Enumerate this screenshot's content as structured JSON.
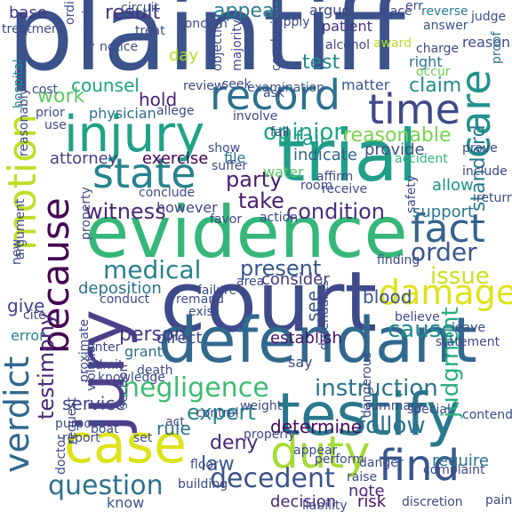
{
  "words": [
    {
      "text": "plaintiff",
      "color": "#3b528b"
    },
    {
      "text": "court",
      "color": "#3e4a89"
    },
    {
      "text": "evidence",
      "color": "#35b779"
    },
    {
      "text": "defendant",
      "color": "#31688e"
    },
    {
      "text": "trial",
      "color": "#1f9e89"
    },
    {
      "text": "jury",
      "color": "#4f3f8b"
    },
    {
      "text": "testify",
      "color": "#2a788e"
    },
    {
      "text": "case",
      "color": "#dde318"
    },
    {
      "text": "injury",
      "color": "#1fa187"
    },
    {
      "text": "because",
      "color": "#440154"
    },
    {
      "text": "state",
      "color": "#26828e"
    },
    {
      "text": "time",
      "color": "#3e4989"
    },
    {
      "text": "record",
      "color": "#2d718e"
    },
    {
      "text": "care",
      "color": "#21918c"
    },
    {
      "text": "fact",
      "color": "#33638d"
    },
    {
      "text": "motion",
      "color": "#bddf26"
    },
    {
      "text": "duty",
      "color": "#a5db36"
    },
    {
      "text": "find",
      "color": "#39568c"
    },
    {
      "text": "damage",
      "color": "#dde318"
    },
    {
      "text": "verdict",
      "color": "#30678d"
    },
    {
      "text": "testimony",
      "color": "#482878"
    },
    {
      "text": "judgment",
      "color": "#29af7f"
    },
    {
      "text": "negligence",
      "color": "#3dbc74"
    },
    {
      "text": "instruction",
      "color": "#2c728e"
    },
    {
      "text": "question",
      "color": "#2d708e"
    },
    {
      "text": "decedent",
      "color": "#3b528b"
    },
    {
      "text": "follow",
      "color": "#2d718e"
    },
    {
      "text": "medical",
      "color": "#27808e"
    },
    {
      "text": "condition",
      "color": "#472f7d"
    },
    {
      "text": "witness",
      "color": "#482576"
    },
    {
      "text": "order",
      "color": "#3a548c"
    },
    {
      "text": "present",
      "color": "#39568c"
    },
    {
      "text": "issue",
      "color": "#c8e020"
    },
    {
      "text": "expert",
      "color": "#25848e"
    },
    {
      "text": "opinion",
      "color": "#21a685"
    },
    {
      "text": "party",
      "color": "#481f70"
    },
    {
      "text": "take",
      "color": "#481c6e"
    },
    {
      "text": "cause",
      "color": "#23898e"
    },
    {
      "text": "person",
      "color": "#443a83"
    },
    {
      "text": "result",
      "color": "#46327e"
    },
    {
      "text": "appeal",
      "color": "#287d8e"
    },
    {
      "text": "law",
      "color": "#39568c"
    },
    {
      "text": "deny",
      "color": "#482878"
    },
    {
      "text": "reasonable",
      "color": "#7ad151"
    },
    {
      "text": "claim",
      "color": "#238a8d"
    },
    {
      "text": "fail",
      "color": "#1f9a8a"
    },
    {
      "text": "standard",
      "color": "#2a778e"
    },
    {
      "text": "test",
      "color": "#24868e"
    },
    {
      "text": "work",
      "color": "#5ec962"
    },
    {
      "text": "give",
      "color": "#414487"
    },
    {
      "text": "blood",
      "color": "#3a538b"
    },
    {
      "text": "hold",
      "color": "#482475"
    },
    {
      "text": "rule",
      "color": "#2d708e"
    },
    {
      "text": "determine",
      "color": "#460b5e"
    },
    {
      "text": "counsel",
      "color": "#20a386"
    },
    {
      "text": "service",
      "color": "#3f4889"
    },
    {
      "text": "see",
      "color": "#3b528b"
    },
    {
      "text": "deposition",
      "color": "#2c728e"
    },
    {
      "text": "attorney",
      "color": "#433e85"
    },
    {
      "text": "exercise",
      "color": "#440154"
    },
    {
      "text": "establish",
      "color": "#471365"
    },
    {
      "text": "direct",
      "color": "#3e4989"
    },
    {
      "text": "note",
      "color": "#472c7a"
    },
    {
      "text": "require",
      "color": "#2c728e"
    },
    {
      "text": "consider",
      "color": "#453882"
    },
    {
      "text": "provide",
      "color": "#3c4f8a"
    },
    {
      "text": "indicate",
      "color": "#32658e"
    },
    {
      "text": "support",
      "color": "#2a788e"
    },
    {
      "text": "allow",
      "color": "#1f958b"
    },
    {
      "text": "base",
      "color": "#443983"
    },
    {
      "text": "day",
      "color": "#b5de2b"
    },
    {
      "text": "risk",
      "color": "#471365"
    },
    {
      "text": "decision",
      "color": "#482878"
    },
    {
      "text": "know",
      "color": "#3b528b"
    },
    {
      "text": "however",
      "color": "#414487"
    },
    {
      "text": "grant",
      "color": "#2e6f8e"
    },
    {
      "text": "say",
      "color": "#3f4788"
    },
    {
      "text": "matter",
      "color": "#3a548c"
    },
    {
      "text": "right",
      "color": "#2a768e"
    },
    {
      "text": "file",
      "color": "#2d708e"
    },
    {
      "text": "water",
      "color": "#56c667"
    },
    {
      "text": "physician",
      "color": "#2c728e"
    },
    {
      "text": "error",
      "color": "#25838e"
    },
    {
      "text": "reason",
      "color": "#3e4a89"
    },
    {
      "text": "judge",
      "color": "#3b528b"
    },
    {
      "text": "proof",
      "color": "#2c728e"
    },
    {
      "text": "argue",
      "color": "#404588"
    },
    {
      "text": "patient",
      "color": "#453581"
    },
    {
      "text": "place",
      "color": "#3e4989"
    },
    {
      "text": "circuit",
      "color": "#3a548c"
    },
    {
      "text": "concern",
      "color": "#3e4a89"
    },
    {
      "text": "apply",
      "color": "#3e4a89"
    },
    {
      "text": "reverse",
      "color": "#2a788e"
    },
    {
      "text": "answer",
      "color": "#3a548c"
    },
    {
      "text": "conclusion",
      "color": "#3e4a89"
    },
    {
      "text": "alcohol",
      "color": "#3e4a89"
    },
    {
      "text": "award",
      "color": "#b5de2b"
    },
    {
      "text": "charge",
      "color": "#3e4a89"
    },
    {
      "text": "occur",
      "color": "#6ccd5a"
    },
    {
      "text": "examination",
      "color": "#3b528b"
    },
    {
      "text": "majority",
      "color": "#3e4a89"
    },
    {
      "text": "objection",
      "color": "#3e4a89"
    },
    {
      "text": "ask",
      "color": "#3e4a89"
    },
    {
      "text": "hospital",
      "color": "#25848e"
    },
    {
      "text": "cost",
      "color": "#3e4a89"
    },
    {
      "text": "prior",
      "color": "#3e4a89"
    },
    {
      "text": "use",
      "color": "#3e4a89"
    },
    {
      "text": "allege",
      "color": "#3e4a89"
    },
    {
      "text": "review",
      "color": "#3e4a89"
    },
    {
      "text": "seek",
      "color": "#3e4a89"
    },
    {
      "text": "suffer",
      "color": "#3e4a89"
    },
    {
      "text": "control",
      "color": "#3e4a89"
    },
    {
      "text": "act",
      "color": "#3e4a89"
    },
    {
      "text": "favor",
      "color": "#3e4a89"
    },
    {
      "text": "action",
      "color": "#3e4a89"
    },
    {
      "text": "conclude",
      "color": "#3e4a89"
    },
    {
      "text": "affirm",
      "color": "#3e4a89"
    },
    {
      "text": "receive",
      "color": "#3e4a89"
    },
    {
      "text": "accident",
      "color": "#35b779"
    },
    {
      "text": "prove",
      "color": "#3e4a89"
    },
    {
      "text": "include",
      "color": "#3e4a89"
    },
    {
      "text": "return",
      "color": "#3e4a89"
    },
    {
      "text": "failure",
      "color": "#3e4a89"
    },
    {
      "text": "area",
      "color": "#3e4a89"
    },
    {
      "text": "finding",
      "color": "#3e4a89"
    },
    {
      "text": "believe",
      "color": "#3e4a89"
    },
    {
      "text": "leave",
      "color": "#3e4a89"
    },
    {
      "text": "statement",
      "color": "#3e4a89"
    },
    {
      "text": "exist",
      "color": "#3e4a89"
    },
    {
      "text": "remand",
      "color": "#3e4a89"
    },
    {
      "text": "conduct",
      "color": "#3e4a89"
    },
    {
      "text": "cite",
      "color": "#3e4a89"
    },
    {
      "text": "admit",
      "color": "#3e4a89"
    },
    {
      "text": "proximate",
      "color": "#3e4a89"
    },
    {
      "text": "death",
      "color": "#3e4a89"
    },
    {
      "text": "enter",
      "color": "#3e4a89"
    },
    {
      "text": "knowledge",
      "color": "#3e4a89"
    },
    {
      "text": "violation",
      "color": "#3e4a89"
    },
    {
      "text": "property",
      "color": "#3e4a89"
    },
    {
      "text": "weight",
      "color": "#3e4a89"
    },
    {
      "text": "properly",
      "color": "#3e4a89"
    },
    {
      "text": "appear",
      "color": "#3e4a89"
    },
    {
      "text": "perform",
      "color": "#3e4a89"
    },
    {
      "text": "special",
      "color": "#3e4a89"
    },
    {
      "text": "contend",
      "color": "#3e4a89"
    },
    {
      "text": "complaint",
      "color": "#3e4a89"
    },
    {
      "text": "danger",
      "color": "#3e4a89"
    },
    {
      "text": "raise",
      "color": "#3e4a89"
    },
    {
      "text": "building",
      "color": "#3e4a89"
    },
    {
      "text": "floor",
      "color": "#3e4a89"
    },
    {
      "text": "liability",
      "color": "#3e4a89"
    },
    {
      "text": "discretion",
      "color": "#3e4a89"
    },
    {
      "text": "pain",
      "color": "#3e4a89"
    },
    {
      "text": "boat",
      "color": "#3e4a89"
    },
    {
      "text": "doctor",
      "color": "#3e4a89"
    },
    {
      "text": "report",
      "color": "#3e4a89"
    },
    {
      "text": "request",
      "color": "#3e4a89"
    },
    {
      "text": "set",
      "color": "#3e4a89"
    },
    {
      "text": "purpose",
      "color": "#3e4a89"
    },
    {
      "text": "section",
      "color": "#3e4a89"
    },
    {
      "text": "treatment",
      "color": "#3e4a89"
    },
    {
      "text": "ordinary",
      "color": "#3e4a89"
    },
    {
      "text": "premise",
      "color": "#3e4a89"
    },
    {
      "text": "notice",
      "color": "#3e4a89"
    },
    {
      "text": "treat",
      "color": "#3e4a89"
    },
    {
      "text": "err",
      "color": "#3e4a89"
    },
    {
      "text": "show",
      "color": "#3e4a89"
    },
    {
      "text": "safety",
      "color": "#3e4a89"
    },
    {
      "text": "room",
      "color": "#3e4a89"
    },
    {
      "text": "dangerous",
      "color": "#3e4a89"
    },
    {
      "text": "reasonably",
      "color": "#3e4a89"
    },
    {
      "text": "argument",
      "color": "#3e4a89"
    },
    {
      "text": "defendants",
      "color": "#3e4a89"
    },
    {
      "text": "fall",
      "color": "#3e4a89"
    },
    {
      "text": "summary",
      "color": "#3e4a89"
    },
    {
      "text": "involve",
      "color": "#3e4a89"
    },
    {
      "text": "new",
      "color": "#3e4a89"
    }
  ]
}
